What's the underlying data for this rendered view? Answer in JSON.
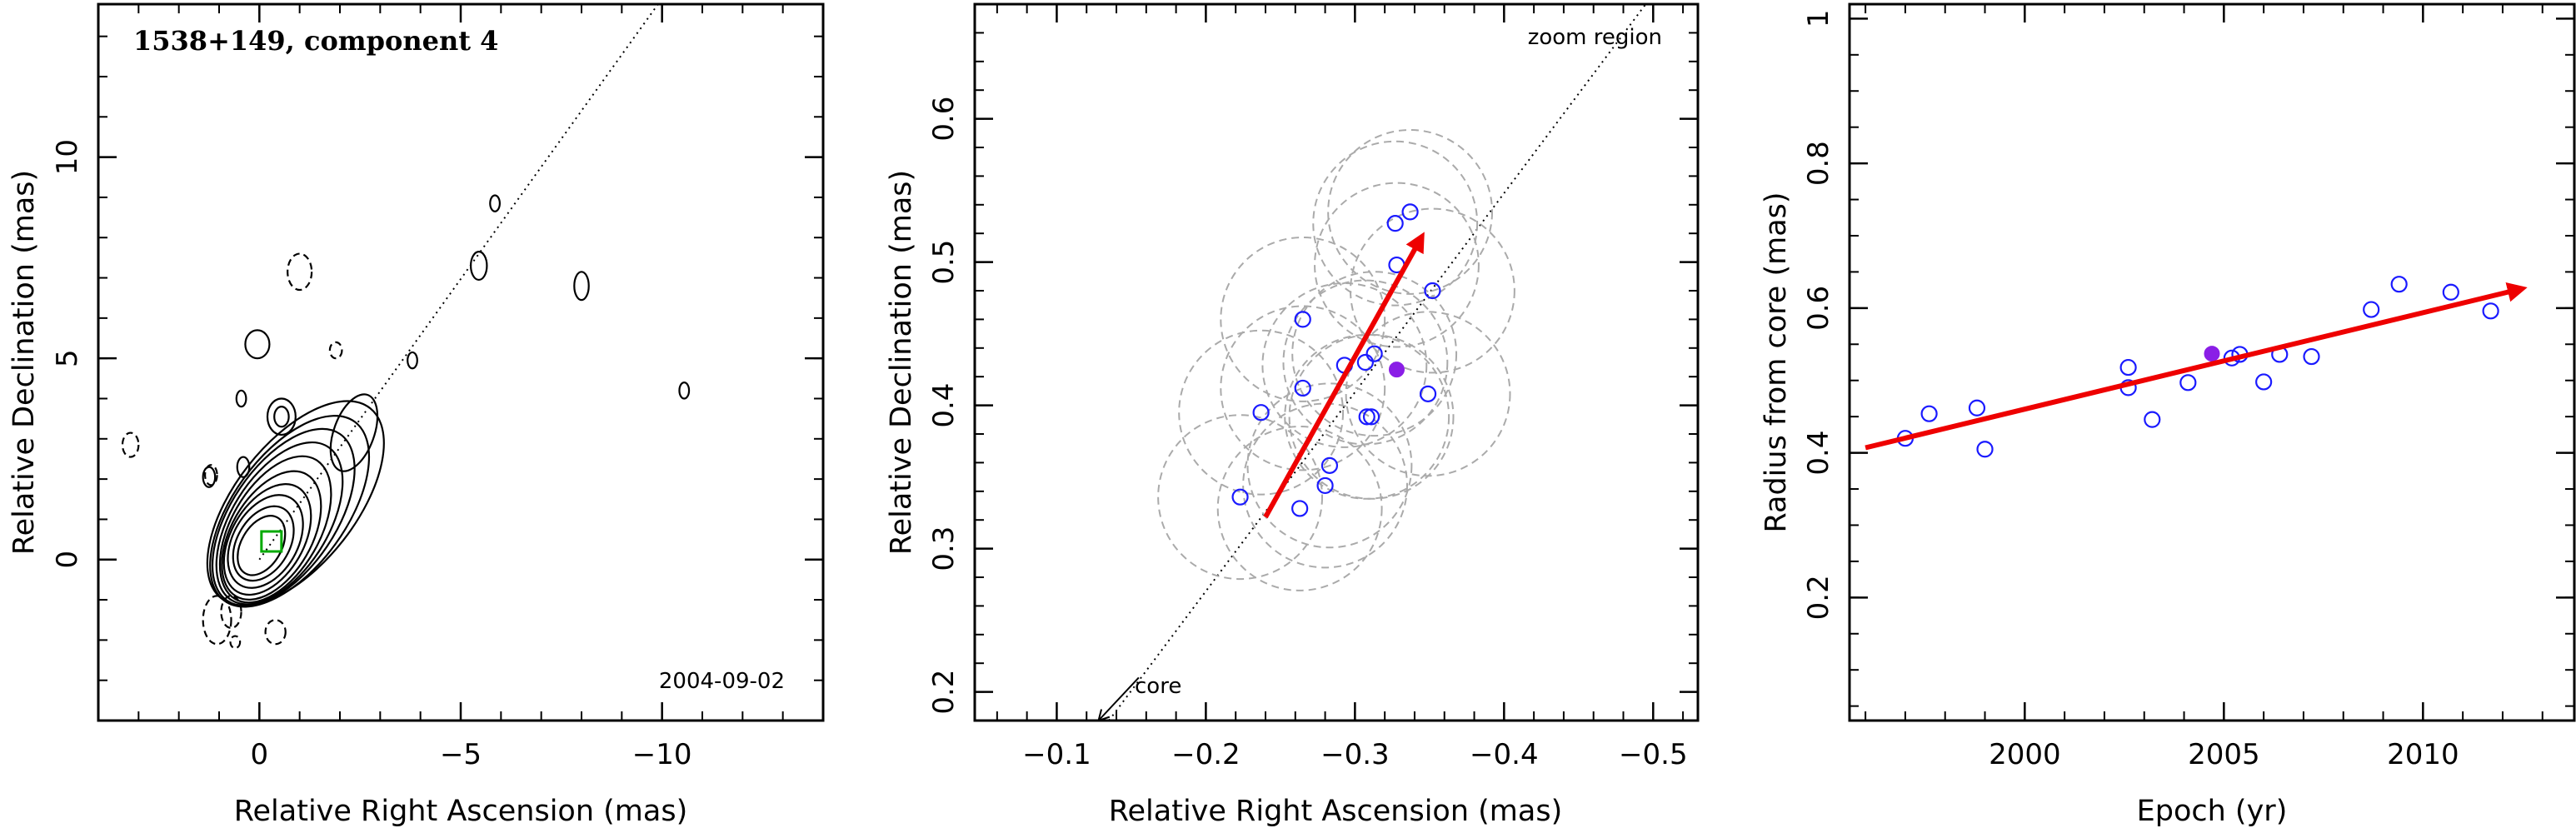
{
  "chart_data": [
    {
      "type": "scatter",
      "title": "1538+149, component 4",
      "annotation": "2004-09-02",
      "xlabel": "Relative Right Ascension (mas)",
      "ylabel": "Relative Declination (mas)",
      "xlim": [
        4.0,
        -14.0
      ],
      "ylim": [
        -4.0,
        13.8
      ],
      "xticks": [
        0,
        -5,
        -10
      ],
      "xtick_labels": [
        "0",
        "−5",
        "−10"
      ],
      "yticks": [
        0,
        5,
        10
      ],
      "ytick_labels": [
        "0",
        "5",
        "10"
      ],
      "jet_line": {
        "from": [
          0.0,
          0.0
        ],
        "to": [
          -9.9,
          13.8
        ],
        "style": "dotted"
      },
      "component_box": {
        "x": -0.3,
        "y": 0.45
      },
      "contours_solid": [
        {
          "x": -0.05,
          "y": 0.35,
          "rx": 0.5,
          "ry": 0.8,
          "rot": 30
        },
        {
          "x": -0.1,
          "y": 0.4,
          "rx": 0.65,
          "ry": 1.0,
          "rot": 30
        },
        {
          "x": -0.15,
          "y": 0.45,
          "rx": 0.8,
          "ry": 1.25,
          "rot": 30
        },
        {
          "x": -0.2,
          "y": 0.5,
          "rx": 0.9,
          "ry": 1.5,
          "rot": 30
        },
        {
          "x": -0.3,
          "y": 0.6,
          "rx": 1.0,
          "ry": 1.75,
          "rot": 30
        },
        {
          "x": -0.4,
          "y": 0.75,
          "rx": 1.1,
          "ry": 2.0,
          "rot": 30
        },
        {
          "x": -0.5,
          "y": 0.9,
          "rx": 1.2,
          "ry": 2.25,
          "rot": 32
        },
        {
          "x": -0.6,
          "y": 1.05,
          "rx": 1.3,
          "ry": 2.5,
          "rot": 34
        },
        {
          "x": -0.75,
          "y": 1.2,
          "rx": 1.4,
          "ry": 2.75,
          "rot": 36
        },
        {
          "x": -0.9,
          "y": 1.4,
          "rx": 1.5,
          "ry": 3.0,
          "rot": 38
        },
        {
          "x": -2.35,
          "y": 3.15,
          "rx": 0.5,
          "ry": 1.0,
          "rot": 20
        },
        {
          "x": -0.55,
          "y": 3.55,
          "rx": 0.35,
          "ry": 0.45,
          "rot": 0
        },
        {
          "x": -0.55,
          "y": 3.55,
          "rx": 0.18,
          "ry": 0.25,
          "rot": 0
        },
        {
          "x": 0.05,
          "y": 5.35,
          "rx": 0.3,
          "ry": 0.35,
          "rot": 0
        },
        {
          "x": -5.45,
          "y": 7.3,
          "rx": 0.2,
          "ry": 0.35,
          "rot": 0
        },
        {
          "x": -8.0,
          "y": 6.8,
          "rx": 0.18,
          "ry": 0.35,
          "rot": 0
        },
        {
          "x": -3.8,
          "y": 4.95,
          "rx": 0.12,
          "ry": 0.2,
          "rot": 0
        },
        {
          "x": -5.85,
          "y": 8.85,
          "rx": 0.12,
          "ry": 0.2,
          "rot": 0
        },
        {
          "x": -10.55,
          "y": 4.2,
          "rx": 0.12,
          "ry": 0.2,
          "rot": 0
        },
        {
          "x": 0.4,
          "y": 2.3,
          "rx": 0.15,
          "ry": 0.25,
          "rot": 0
        },
        {
          "x": 1.25,
          "y": 2.05,
          "rx": 0.15,
          "ry": 0.25,
          "rot": 0
        },
        {
          "x": 0.45,
          "y": 4.0,
          "rx": 0.12,
          "ry": 0.2,
          "rot": 0
        }
      ],
      "contours_dashed": [
        {
          "x": -1.0,
          "y": 7.15,
          "rx": 0.3,
          "ry": 0.45,
          "rot": 0
        },
        {
          "x": -1.9,
          "y": 5.2,
          "rx": 0.15,
          "ry": 0.2,
          "rot": 0
        },
        {
          "x": 3.2,
          "y": 2.85,
          "rx": 0.2,
          "ry": 0.3,
          "rot": 0
        },
        {
          "x": 1.2,
          "y": 2.1,
          "rx": 0.15,
          "ry": 0.25,
          "rot": 0
        },
        {
          "x": 1.05,
          "y": -1.5,
          "rx": 0.35,
          "ry": 0.6,
          "rot": 0
        },
        {
          "x": 0.7,
          "y": -1.3,
          "rx": 0.25,
          "ry": 0.4,
          "rot": 0
        },
        {
          "x": -0.4,
          "y": -1.8,
          "rx": 0.25,
          "ry": 0.3,
          "rot": 0
        },
        {
          "x": 0.6,
          "y": -2.05,
          "rx": 0.12,
          "ry": 0.15,
          "rot": 0
        }
      ]
    },
    {
      "type": "scatter",
      "annotations": [
        "zoom region",
        "core"
      ],
      "xlabel": "Relative Right Ascension (mas)",
      "ylabel": "Relative Declination (mas)",
      "xlim": [
        -0.045,
        -0.53
      ],
      "ylim": [
        0.18,
        0.68
      ],
      "xticks": [
        -0.1,
        -0.2,
        -0.3,
        -0.4,
        -0.5
      ],
      "xtick_labels": [
        "−0.1",
        "−0.2",
        "−0.3",
        "−0.4",
        "−0.5"
      ],
      "yticks": [
        0.2,
        0.3,
        0.4,
        0.5,
        0.6
      ],
      "ytick_labels": [
        "0.2",
        "0.3",
        "0.4",
        "0.5",
        "0.6"
      ],
      "jet_line": {
        "from": [
          -0.135,
          0.18
        ],
        "to": [
          -0.495,
          0.68
        ],
        "style": "dotted"
      },
      "core_arrow": {
        "from": [
          -0.155,
          0.21
        ],
        "to": [
          -0.128,
          0.18
        ]
      },
      "motion_arrow": {
        "from": [
          -0.24,
          0.322
        ],
        "to": [
          -0.345,
          0.518
        ]
      },
      "circle_radius": 0.055,
      "points": [
        [
          -0.223,
          0.336
        ],
        [
          -0.237,
          0.395
        ],
        [
          -0.263,
          0.328
        ],
        [
          -0.265,
          0.412
        ],
        [
          -0.265,
          0.46
        ],
        [
          -0.28,
          0.344
        ],
        [
          -0.283,
          0.358
        ],
        [
          -0.293,
          0.428
        ],
        [
          -0.307,
          0.43
        ],
        [
          -0.308,
          0.392
        ],
        [
          -0.311,
          0.392
        ],
        [
          -0.313,
          0.436
        ],
        [
          -0.327,
          0.527
        ],
        [
          -0.328,
          0.498
        ],
        [
          -0.337,
          0.535
        ],
        [
          -0.349,
          0.408
        ],
        [
          -0.352,
          0.48
        ]
      ],
      "highlight_point": [
        -0.328,
        0.425
      ]
    },
    {
      "type": "scatter",
      "xlabel": "Epoch (yr)",
      "ylabel": "Radius from core (mas)",
      "xlim": [
        1995.6,
        2013.8
      ],
      "ylim": [
        0.03,
        1.02
      ],
      "xticks": [
        2000,
        2005,
        2010
      ],
      "xtick_labels": [
        "2000",
        "2005",
        "2010"
      ],
      "yticks": [
        0.2,
        0.4,
        0.6,
        0.8,
        1.0
      ],
      "ytick_labels": [
        "0.2",
        "0.4",
        "0.6",
        "0.8",
        "1"
      ],
      "x_minor_step": 1,
      "y_minor_step": 0.05,
      "points": [
        [
          1997.0,
          0.42
        ],
        [
          1997.6,
          0.454
        ],
        [
          1998.8,
          0.462
        ],
        [
          1999.0,
          0.405
        ],
        [
          2002.6,
          0.518
        ],
        [
          2002.6,
          0.49
        ],
        [
          2003.2,
          0.446
        ],
        [
          2004.1,
          0.497
        ],
        [
          2005.2,
          0.531
        ],
        [
          2005.4,
          0.536
        ],
        [
          2006.0,
          0.498
        ],
        [
          2006.4,
          0.536
        ],
        [
          2007.2,
          0.533
        ],
        [
          2008.7,
          0.598
        ],
        [
          2009.4,
          0.633
        ],
        [
          2010.7,
          0.622
        ],
        [
          2011.7,
          0.596
        ]
      ],
      "highlight_point": [
        2004.7,
        0.537
      ],
      "trend_arrow": {
        "from": [
          1996.0,
          0.407
        ],
        "to": [
          2012.5,
          0.627
        ]
      }
    }
  ],
  "colors": {
    "open_marker": "#1a1aff",
    "filled_marker": "#8a1ee6",
    "arrow": "#ee0000",
    "circle": "#aaaaaa",
    "box": "#00aa00"
  }
}
